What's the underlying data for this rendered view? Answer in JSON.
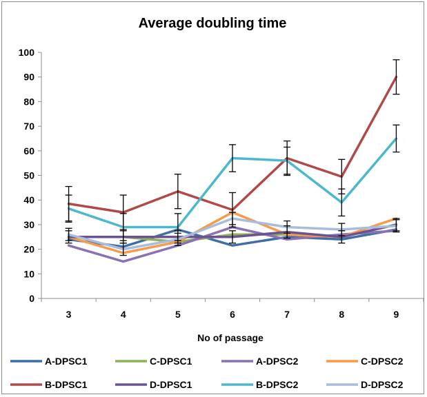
{
  "chart_data": {
    "type": "line",
    "title": "Average doubling time",
    "xlabel": "No of passage",
    "ylabel": "",
    "categories": [
      "3",
      "4",
      "5",
      "6",
      "7",
      "8",
      "9"
    ],
    "ylim": [
      0,
      100
    ],
    "yticks": [
      "0",
      "10",
      "20",
      "30",
      "40",
      "50",
      "60",
      "70",
      "80",
      "90",
      "100"
    ],
    "grid": false,
    "legend_position": "bottom",
    "series": [
      {
        "name": "A-DPSC1",
        "color": "#3d6fa6",
        "values": [
          24,
          21,
          28,
          21.5,
          25,
          24,
          28
        ],
        "errors": [
          0,
          0,
          0,
          0,
          0,
          0,
          0
        ]
      },
      {
        "name": "C-DPSC1",
        "color": "#8fb158",
        "values": [
          25,
          25,
          23,
          26,
          26,
          25,
          30
        ],
        "errors": [
          0,
          0,
          0,
          0,
          0,
          0,
          0
        ]
      },
      {
        "name": "A-DPSC2",
        "color": "#8a70b4",
        "values": [
          21.5,
          15,
          21.5,
          29,
          24,
          26,
          27.5
        ],
        "errors": [
          0,
          0,
          0,
          0,
          0,
          0,
          0
        ]
      },
      {
        "name": "C-DPSC2",
        "color": "#f79a4a",
        "values": [
          25,
          18.5,
          23,
          35,
          26,
          25,
          32.5
        ],
        "errors": [
          0,
          0,
          0,
          0,
          0,
          0,
          0
        ]
      },
      {
        "name": "B-DPSC1",
        "color": "#b04a48",
        "values": [
          38.5,
          35,
          43.5,
          36,
          57,
          49.5,
          90
        ],
        "errors": [
          7,
          7,
          7,
          7,
          7,
          7,
          7
        ]
      },
      {
        "name": "D-DPSC1",
        "color": "#6a5391",
        "values": [
          25,
          25,
          25,
          25,
          27,
          25,
          30
        ],
        "errors": [
          2.5,
          2.5,
          2.5,
          2.5,
          2.5,
          2.5,
          2.5
        ]
      },
      {
        "name": "B-DPSC2",
        "color": "#4bb8cc",
        "values": [
          36.5,
          29,
          29,
          57,
          56,
          39,
          65
        ],
        "errors": [
          5.5,
          5.5,
          5.5,
          5.5,
          5.5,
          5.5,
          5.5
        ]
      },
      {
        "name": "D-DPSC2",
        "color": "#a8bcdc",
        "values": [
          26,
          20,
          24,
          32.5,
          29,
          28,
          29.5
        ],
        "errors": [
          2.5,
          2.5,
          2.5,
          2.5,
          2.5,
          2.5,
          2.5
        ]
      }
    ]
  }
}
